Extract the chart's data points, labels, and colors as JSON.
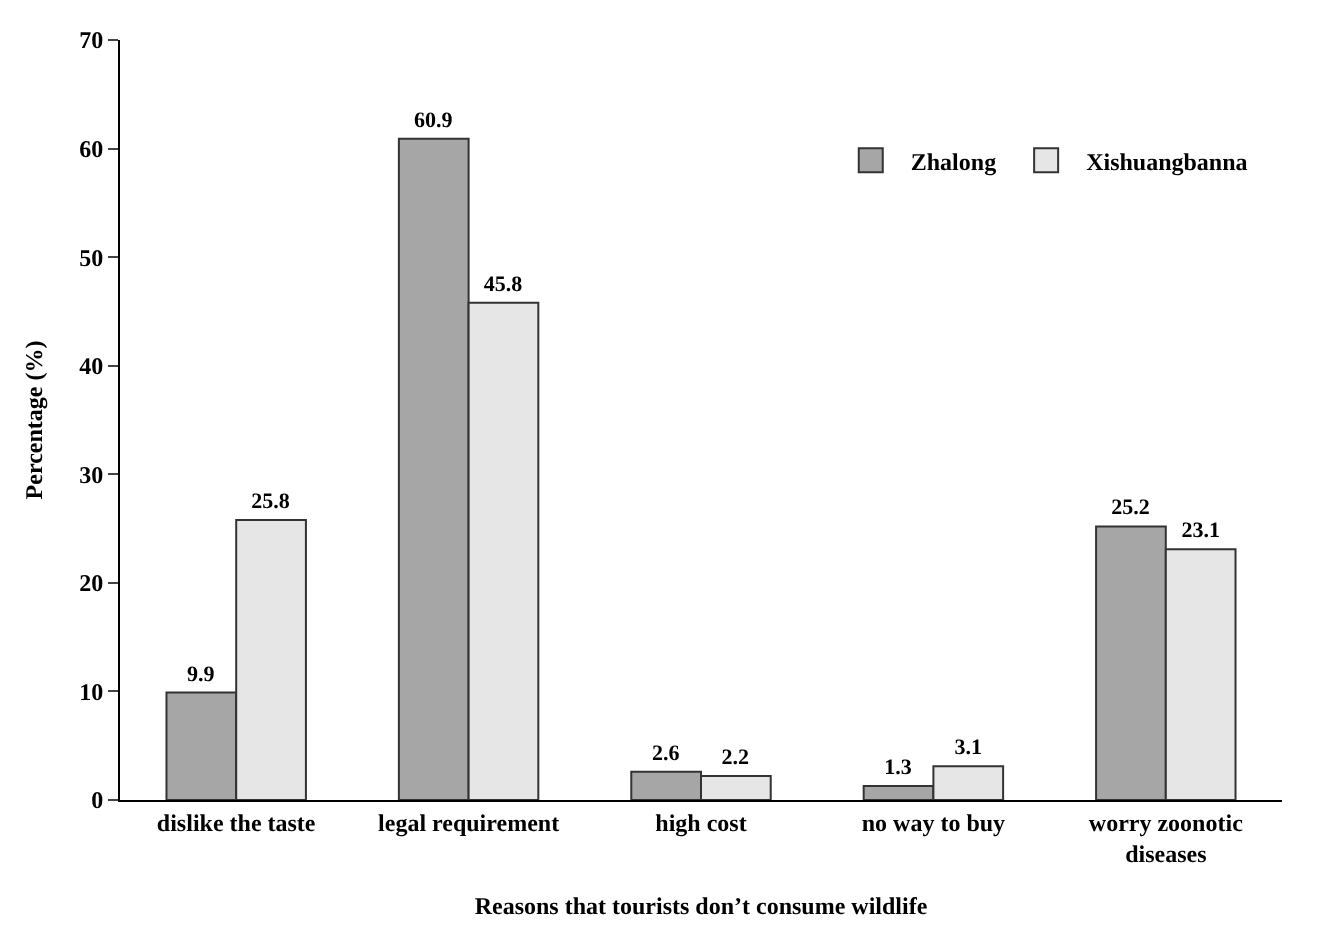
{
  "chart_data": {
    "type": "bar",
    "xlabel": "Reasons that tourists don’t consume wildlife",
    "ylabel": "Percentage (%)",
    "categories": [
      "dislike the taste",
      "legal requirement",
      "high cost",
      "no way to buy",
      "worry zoonotic\ndiseases"
    ],
    "series": [
      {
        "name": "Zhalong",
        "color": "#a6a6a6",
        "values": [
          9.9,
          60.9,
          2.6,
          1.3,
          25.2
        ]
      },
      {
        "name": "Xishuangbanna",
        "color": "#e6e6e6",
        "values": [
          25.8,
          45.8,
          2.2,
          3.1,
          23.1
        ]
      }
    ],
    "ylim": [
      0,
      70
    ],
    "yticks": [
      0,
      10,
      20,
      30,
      40,
      50,
      60,
      70
    ],
    "data_labels": true,
    "legend": "top right"
  }
}
